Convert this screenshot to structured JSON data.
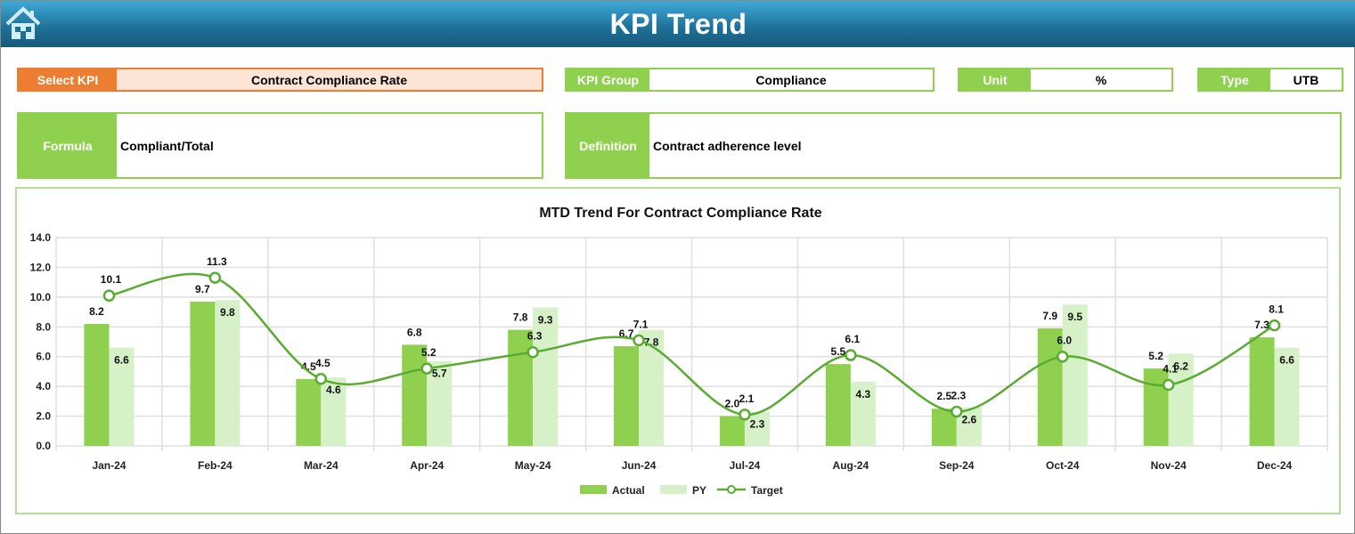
{
  "header": {
    "title": "KPI Trend",
    "home_icon": "home-icon"
  },
  "fields": {
    "select_kpi": {
      "label": "Select KPI",
      "value": "Contract Compliance Rate"
    },
    "kpi_group": {
      "label": "KPI Group",
      "value": "Compliance"
    },
    "unit": {
      "label": "Unit",
      "value": "%"
    },
    "type": {
      "label": "Type",
      "value": "UTB"
    },
    "formula": {
      "label": "Formula",
      "value": "Compliant/Total"
    },
    "definition": {
      "label": "Definition",
      "value": "Contract adherence level"
    }
  },
  "colors": {
    "actual": "#8fd14f",
    "py": "#d6f0c7",
    "target": "#5aab32",
    "select": "#ed7d31"
  },
  "chart_data": {
    "type": "bar",
    "title": "MTD Trend For Contract Compliance Rate",
    "categories": [
      "Jan-24",
      "Feb-24",
      "Mar-24",
      "Apr-24",
      "May-24",
      "Jun-24",
      "Jul-24",
      "Aug-24",
      "Sep-24",
      "Oct-24",
      "Nov-24",
      "Dec-24"
    ],
    "series": [
      {
        "name": "Actual",
        "type": "bar",
        "values": [
          8.2,
          9.7,
          4.5,
          6.8,
          7.8,
          6.7,
          2.0,
          5.5,
          2.5,
          7.9,
          5.2,
          7.3
        ]
      },
      {
        "name": "PY",
        "type": "bar",
        "values": [
          6.6,
          9.8,
          4.6,
          5.7,
          9.3,
          7.8,
          2.3,
          4.3,
          2.6,
          9.5,
          6.2,
          6.6
        ]
      },
      {
        "name": "Target",
        "type": "line",
        "values": [
          10.1,
          11.3,
          4.5,
          5.2,
          6.3,
          7.1,
          2.1,
          6.1,
          2.3,
          6.0,
          4.1,
          8.1
        ]
      }
    ],
    "ylim": [
      0,
      14
    ],
    "yticks": [
      "0.0",
      "2.0",
      "4.0",
      "6.0",
      "8.0",
      "10.0",
      "12.0",
      "14.0"
    ],
    "grid": true,
    "legend": "bottom"
  }
}
